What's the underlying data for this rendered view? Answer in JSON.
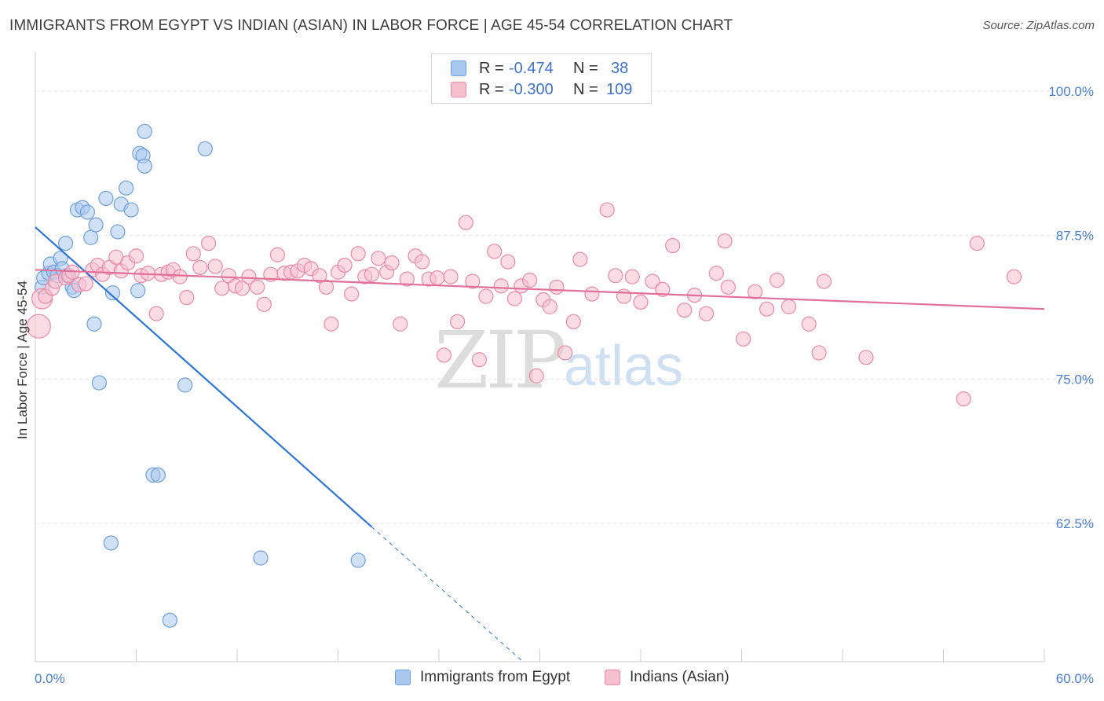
{
  "title": "IMMIGRANTS FROM EGYPT VS INDIAN (ASIAN) IN LABOR FORCE | AGE 45-54 CORRELATION CHART",
  "source": "Source: ZipAtlas.com",
  "watermark": {
    "zip": "ZIP",
    "atlas": "atlas"
  },
  "legend": {
    "rows": [
      {
        "r_label": "R =",
        "r_value": "-0.474",
        "n_label": "N =",
        "n_value": "38",
        "color": "#a9c8ef",
        "border": "#6f9fd9"
      },
      {
        "r_label": "R =",
        "r_value": "-0.300",
        "n_label": "N =",
        "n_value": "109",
        "color": "#f7c0d0",
        "border": "#e88aa6"
      }
    ]
  },
  "bottom_legend": [
    "Immigrants from Egypt",
    "Indians (Asian)"
  ],
  "chart_data": {
    "type": "scatter",
    "xlabel": "",
    "ylabel": "In Labor Force | Age 45-54",
    "xlim": [
      0,
      60
    ],
    "ylim": [
      50.5,
      103
    ],
    "x_tick_labels": {
      "min": "0.0%",
      "max": "60.0%"
    },
    "y_ticks": [
      100,
      87.5,
      75,
      62.5
    ],
    "y_tick_labels": [
      "100.0%",
      "87.5%",
      "75.0%",
      "62.5%"
    ],
    "grid": "horizontal-dashed",
    "series": [
      {
        "name": "Immigrants from Egypt",
        "color": "#a9c8ef",
        "stroke": "#6f9fd9",
        "trend": {
          "x0": 0,
          "y0": 88.2,
          "x1": 20,
          "y1": 62.2,
          "dash_to_x": 29,
          "dash_to_y": 50.5,
          "color": "#2e74d4"
        },
        "points": [
          [
            0.4,
            83.0
          ],
          [
            0.5,
            83.8
          ],
          [
            0.8,
            84.2
          ],
          [
            0.9,
            85.0
          ],
          [
            1.1,
            84.3
          ],
          [
            1.3,
            84.0
          ],
          [
            1.5,
            85.5
          ],
          [
            1.6,
            84.6
          ],
          [
            1.9,
            84.0
          ],
          [
            2.2,
            83.0
          ],
          [
            2.3,
            82.7
          ],
          [
            1.8,
            86.8
          ],
          [
            3.3,
            87.3
          ],
          [
            3.6,
            88.4
          ],
          [
            2.5,
            89.7
          ],
          [
            2.8,
            89.9
          ],
          [
            3.1,
            89.5
          ],
          [
            4.2,
            90.7
          ],
          [
            5.1,
            90.2
          ],
          [
            5.4,
            91.6
          ],
          [
            5.7,
            89.7
          ],
          [
            4.9,
            87.8
          ],
          [
            6.2,
            94.6
          ],
          [
            6.4,
            94.4
          ],
          [
            6.5,
            93.5
          ],
          [
            6.5,
            96.5
          ],
          [
            10.1,
            95.0
          ],
          [
            4.6,
            82.5
          ],
          [
            6.1,
            82.7
          ],
          [
            3.5,
            79.8
          ],
          [
            3.8,
            74.7
          ],
          [
            8.9,
            74.5
          ],
          [
            7.0,
            66.7
          ],
          [
            7.3,
            66.7
          ],
          [
            4.5,
            60.8
          ],
          [
            13.4,
            59.5
          ],
          [
            19.2,
            59.3
          ],
          [
            8.0,
            54.1
          ]
        ]
      },
      {
        "name": "Indians (Asian)",
        "color": "#f7c0d0",
        "stroke": "#e88aa6",
        "trend": {
          "x0": 0,
          "y0": 84.5,
          "x1": 60,
          "y1": 81.1,
          "color": "#e0709a"
        },
        "points": [
          [
            0.2,
            79.6
          ],
          [
            0.4,
            82.0
          ],
          [
            0.6,
            82.2
          ],
          [
            1.0,
            82.9
          ],
          [
            1.2,
            83.5
          ],
          [
            1.8,
            83.8
          ],
          [
            2.0,
            84.0
          ],
          [
            2.2,
            84.3
          ],
          [
            2.6,
            83.2
          ],
          [
            3.0,
            83.3
          ],
          [
            3.4,
            84.5
          ],
          [
            3.7,
            84.9
          ],
          [
            4.0,
            84.1
          ],
          [
            4.4,
            84.7
          ],
          [
            4.8,
            85.6
          ],
          [
            5.1,
            84.4
          ],
          [
            5.5,
            85.1
          ],
          [
            6.0,
            85.7
          ],
          [
            6.3,
            84.0
          ],
          [
            6.7,
            84.2
          ],
          [
            7.2,
            80.7
          ],
          [
            7.5,
            84.1
          ],
          [
            7.9,
            84.3
          ],
          [
            8.2,
            84.5
          ],
          [
            8.6,
            83.9
          ],
          [
            9.0,
            82.1
          ],
          [
            9.4,
            85.9
          ],
          [
            9.8,
            84.7
          ],
          [
            10.3,
            86.8
          ],
          [
            10.7,
            84.8
          ],
          [
            11.1,
            82.9
          ],
          [
            11.5,
            84.0
          ],
          [
            11.9,
            83.1
          ],
          [
            12.3,
            82.9
          ],
          [
            12.7,
            83.9
          ],
          [
            13.2,
            83.0
          ],
          [
            13.6,
            81.5
          ],
          [
            14.0,
            84.1
          ],
          [
            14.4,
            85.8
          ],
          [
            14.8,
            84.2
          ],
          [
            15.2,
            84.3
          ],
          [
            15.6,
            84.4
          ],
          [
            16.0,
            84.9
          ],
          [
            16.4,
            84.6
          ],
          [
            16.9,
            84.0
          ],
          [
            17.3,
            83.0
          ],
          [
            17.6,
            79.8
          ],
          [
            18.0,
            84.3
          ],
          [
            18.4,
            84.9
          ],
          [
            18.8,
            82.4
          ],
          [
            19.2,
            85.9
          ],
          [
            19.6,
            83.9
          ],
          [
            20.0,
            84.1
          ],
          [
            20.4,
            85.5
          ],
          [
            20.9,
            84.3
          ],
          [
            21.2,
            85.1
          ],
          [
            21.7,
            79.8
          ],
          [
            22.1,
            83.7
          ],
          [
            22.6,
            85.7
          ],
          [
            23.0,
            85.2
          ],
          [
            23.4,
            83.7
          ],
          [
            23.9,
            83.8
          ],
          [
            24.3,
            77.1
          ],
          [
            24.7,
            83.9
          ],
          [
            25.1,
            80.0
          ],
          [
            25.6,
            88.6
          ],
          [
            26.0,
            83.5
          ],
          [
            26.4,
            76.7
          ],
          [
            26.8,
            82.2
          ],
          [
            27.3,
            86.1
          ],
          [
            27.7,
            83.1
          ],
          [
            28.1,
            85.2
          ],
          [
            28.5,
            82.0
          ],
          [
            28.9,
            83.1
          ],
          [
            29.4,
            83.6
          ],
          [
            29.8,
            75.3
          ],
          [
            30.2,
            81.9
          ],
          [
            30.6,
            81.3
          ],
          [
            31.0,
            83.0
          ],
          [
            31.5,
            77.3
          ],
          [
            32.0,
            80.0
          ],
          [
            32.4,
            85.4
          ],
          [
            33.1,
            82.4
          ],
          [
            34.0,
            89.7
          ],
          [
            34.5,
            84.0
          ],
          [
            35.0,
            82.2
          ],
          [
            35.5,
            83.9
          ],
          [
            36.0,
            81.7
          ],
          [
            36.7,
            83.5
          ],
          [
            37.3,
            82.8
          ],
          [
            37.9,
            86.6
          ],
          [
            38.6,
            81.0
          ],
          [
            39.2,
            82.3
          ],
          [
            39.9,
            80.7
          ],
          [
            40.5,
            84.2
          ],
          [
            41.2,
            83.0
          ],
          [
            42.1,
            78.5
          ],
          [
            42.8,
            82.6
          ],
          [
            43.5,
            81.1
          ],
          [
            44.1,
            83.6
          ],
          [
            44.8,
            81.3
          ],
          [
            46.0,
            79.8
          ],
          [
            46.6,
            77.3
          ],
          [
            46.9,
            83.5
          ],
          [
            49.4,
            76.9
          ],
          [
            55.2,
            73.3
          ],
          [
            56.0,
            86.8
          ],
          [
            58.2,
            83.9
          ],
          [
            41.0,
            87.0
          ]
        ]
      }
    ]
  }
}
